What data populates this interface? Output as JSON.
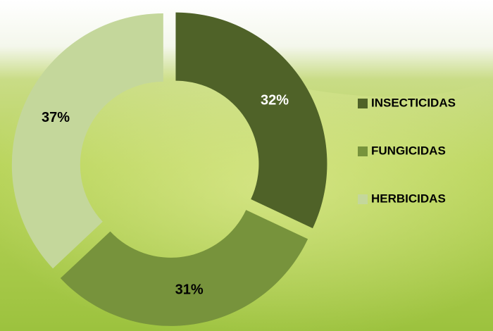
{
  "chart_data": {
    "type": "donut",
    "categories": [
      "INSECTICIDAS",
      "FUNGICIDAS",
      "HERBICIDAS"
    ],
    "values": [
      32,
      31,
      37
    ],
    "value_labels": [
      "32%",
      "31%",
      "37%"
    ],
    "colors": [
      "#4f6228",
      "#77933c",
      "#c4d79b"
    ],
    "legend": "right"
  }
}
